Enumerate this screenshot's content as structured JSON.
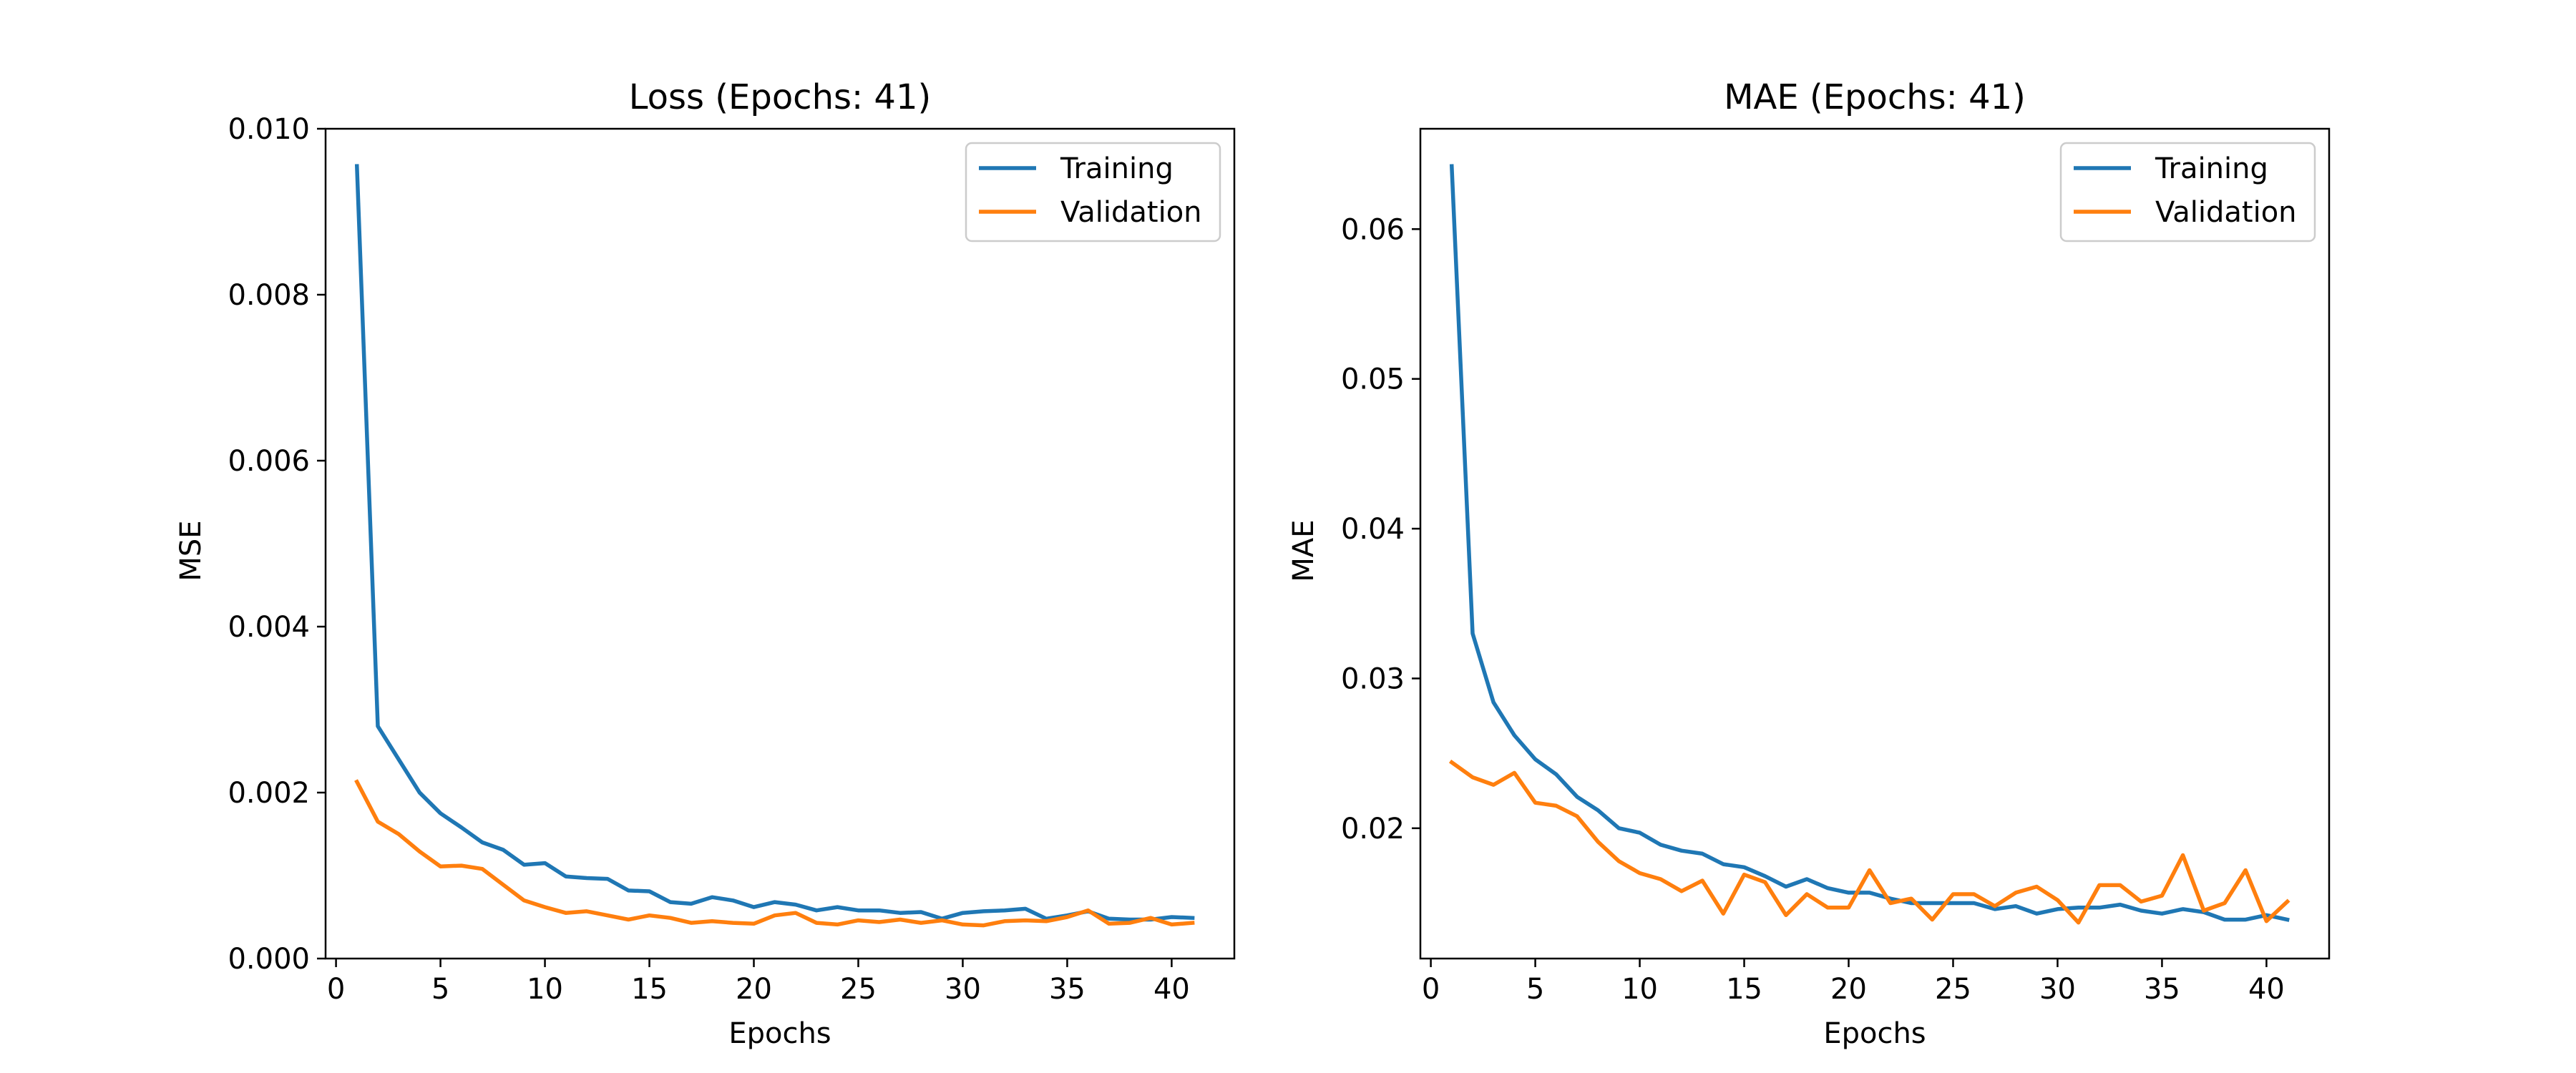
{
  "chart_data": [
    {
      "type": "line",
      "title": "Loss (Epochs: 41)",
      "xlabel": "Epochs",
      "ylabel": "MSE",
      "xlim": [
        -0.5,
        43
      ],
      "ylim": [
        0,
        0.01
      ],
      "xticks": [
        0,
        5,
        10,
        15,
        20,
        25,
        30,
        35,
        40
      ],
      "yticks": [
        0.0,
        0.002,
        0.004,
        0.006,
        0.008,
        0.01
      ],
      "xtick_labels": [
        "0",
        "5",
        "10",
        "15",
        "20",
        "25",
        "30",
        "35",
        "40"
      ],
      "ytick_labels": [
        "0.000",
        "0.002",
        "0.004",
        "0.006",
        "0.008",
        "0.010"
      ],
      "legend_position": "top-right",
      "grid": false,
      "x": [
        1,
        2,
        3,
        4,
        5,
        6,
        7,
        8,
        9,
        10,
        11,
        12,
        13,
        14,
        15,
        16,
        17,
        18,
        19,
        20,
        21,
        22,
        23,
        24,
        25,
        26,
        27,
        28,
        29,
        30,
        31,
        32,
        33,
        34,
        35,
        36,
        37,
        38,
        39,
        40,
        41
      ],
      "series": [
        {
          "name": "Training",
          "color": "#1f77b4",
          "values": [
            0.00955,
            0.0028,
            0.0024,
            0.002,
            0.00175,
            0.00158,
            0.0014,
            0.00131,
            0.00113,
            0.00115,
            0.00099,
            0.00097,
            0.00096,
            0.00082,
            0.00081,
            0.00068,
            0.00066,
            0.00074,
            0.0007,
            0.00062,
            0.00068,
            0.00065,
            0.00058,
            0.00062,
            0.00058,
            0.00058,
            0.00055,
            0.00056,
            0.00048,
            0.00055,
            0.00057,
            0.00058,
            0.0006,
            0.00048,
            0.00052,
            0.00057,
            0.00048,
            0.00047,
            0.00047,
            0.0005,
            0.00049
          ]
        },
        {
          "name": "Validation",
          "color": "#ff7f0e",
          "values": [
            0.00213,
            0.00165,
            0.0015,
            0.00129,
            0.00111,
            0.00112,
            0.00108,
            0.00089,
            0.0007,
            0.00062,
            0.00055,
            0.00057,
            0.00052,
            0.00047,
            0.00052,
            0.00049,
            0.00043,
            0.00045,
            0.00043,
            0.00042,
            0.00052,
            0.00055,
            0.00043,
            0.00041,
            0.00046,
            0.00044,
            0.00047,
            0.00043,
            0.00046,
            0.00041,
            0.0004,
            0.00045,
            0.00046,
            0.00045,
            0.0005,
            0.00058,
            0.00042,
            0.00043,
            0.00049,
            0.00041,
            0.00043
          ]
        }
      ]
    },
    {
      "type": "line",
      "title": "MAE (Epochs: 41)",
      "xlabel": "Epochs",
      "ylabel": "MAE",
      "xlim": [
        -0.5,
        43
      ],
      "ylim": [
        0.0113,
        0.0667
      ],
      "xticks": [
        0,
        5,
        10,
        15,
        20,
        25,
        30,
        35,
        40
      ],
      "yticks": [
        0.02,
        0.03,
        0.04,
        0.05,
        0.06
      ],
      "xtick_labels": [
        "0",
        "5",
        "10",
        "15",
        "20",
        "25",
        "30",
        "35",
        "40"
      ],
      "ytick_labels": [
        "0.02",
        "0.03",
        "0.04",
        "0.05",
        "0.06"
      ],
      "legend_position": "top-right",
      "grid": false,
      "x": [
        1,
        2,
        3,
        4,
        5,
        6,
        7,
        8,
        9,
        10,
        11,
        12,
        13,
        14,
        15,
        16,
        17,
        18,
        19,
        20,
        21,
        22,
        23,
        24,
        25,
        26,
        27,
        28,
        29,
        30,
        31,
        32,
        33,
        34,
        35,
        36,
        37,
        38,
        39,
        40,
        41
      ],
      "series": [
        {
          "name": "Training",
          "color": "#1f77b4",
          "values": [
            0.0642,
            0.033,
            0.0284,
            0.0262,
            0.0246,
            0.0236,
            0.0221,
            0.0212,
            0.02,
            0.0197,
            0.0189,
            0.0185,
            0.0183,
            0.0176,
            0.0174,
            0.0168,
            0.0161,
            0.0166,
            0.016,
            0.0157,
            0.0157,
            0.0153,
            0.015,
            0.015,
            0.015,
            0.015,
            0.0146,
            0.0148,
            0.0143,
            0.0146,
            0.0147,
            0.0147,
            0.0149,
            0.0145,
            0.0143,
            0.0146,
            0.0144,
            0.0139,
            0.0139,
            0.0142,
            0.0139
          ]
        },
        {
          "name": "Validation",
          "color": "#ff7f0e",
          "values": [
            0.0244,
            0.0234,
            0.0229,
            0.0237,
            0.0217,
            0.0215,
            0.0208,
            0.0191,
            0.0178,
            0.017,
            0.0166,
            0.0158,
            0.0165,
            0.0143,
            0.0169,
            0.0164,
            0.0142,
            0.0156,
            0.0147,
            0.0147,
            0.0172,
            0.015,
            0.0153,
            0.0139,
            0.0156,
            0.0156,
            0.0148,
            0.0157,
            0.0161,
            0.0152,
            0.0137,
            0.0162,
            0.0162,
            0.0151,
            0.0155,
            0.0182,
            0.0145,
            0.015,
            0.0172,
            0.0138,
            0.0151
          ]
        }
      ]
    }
  ]
}
